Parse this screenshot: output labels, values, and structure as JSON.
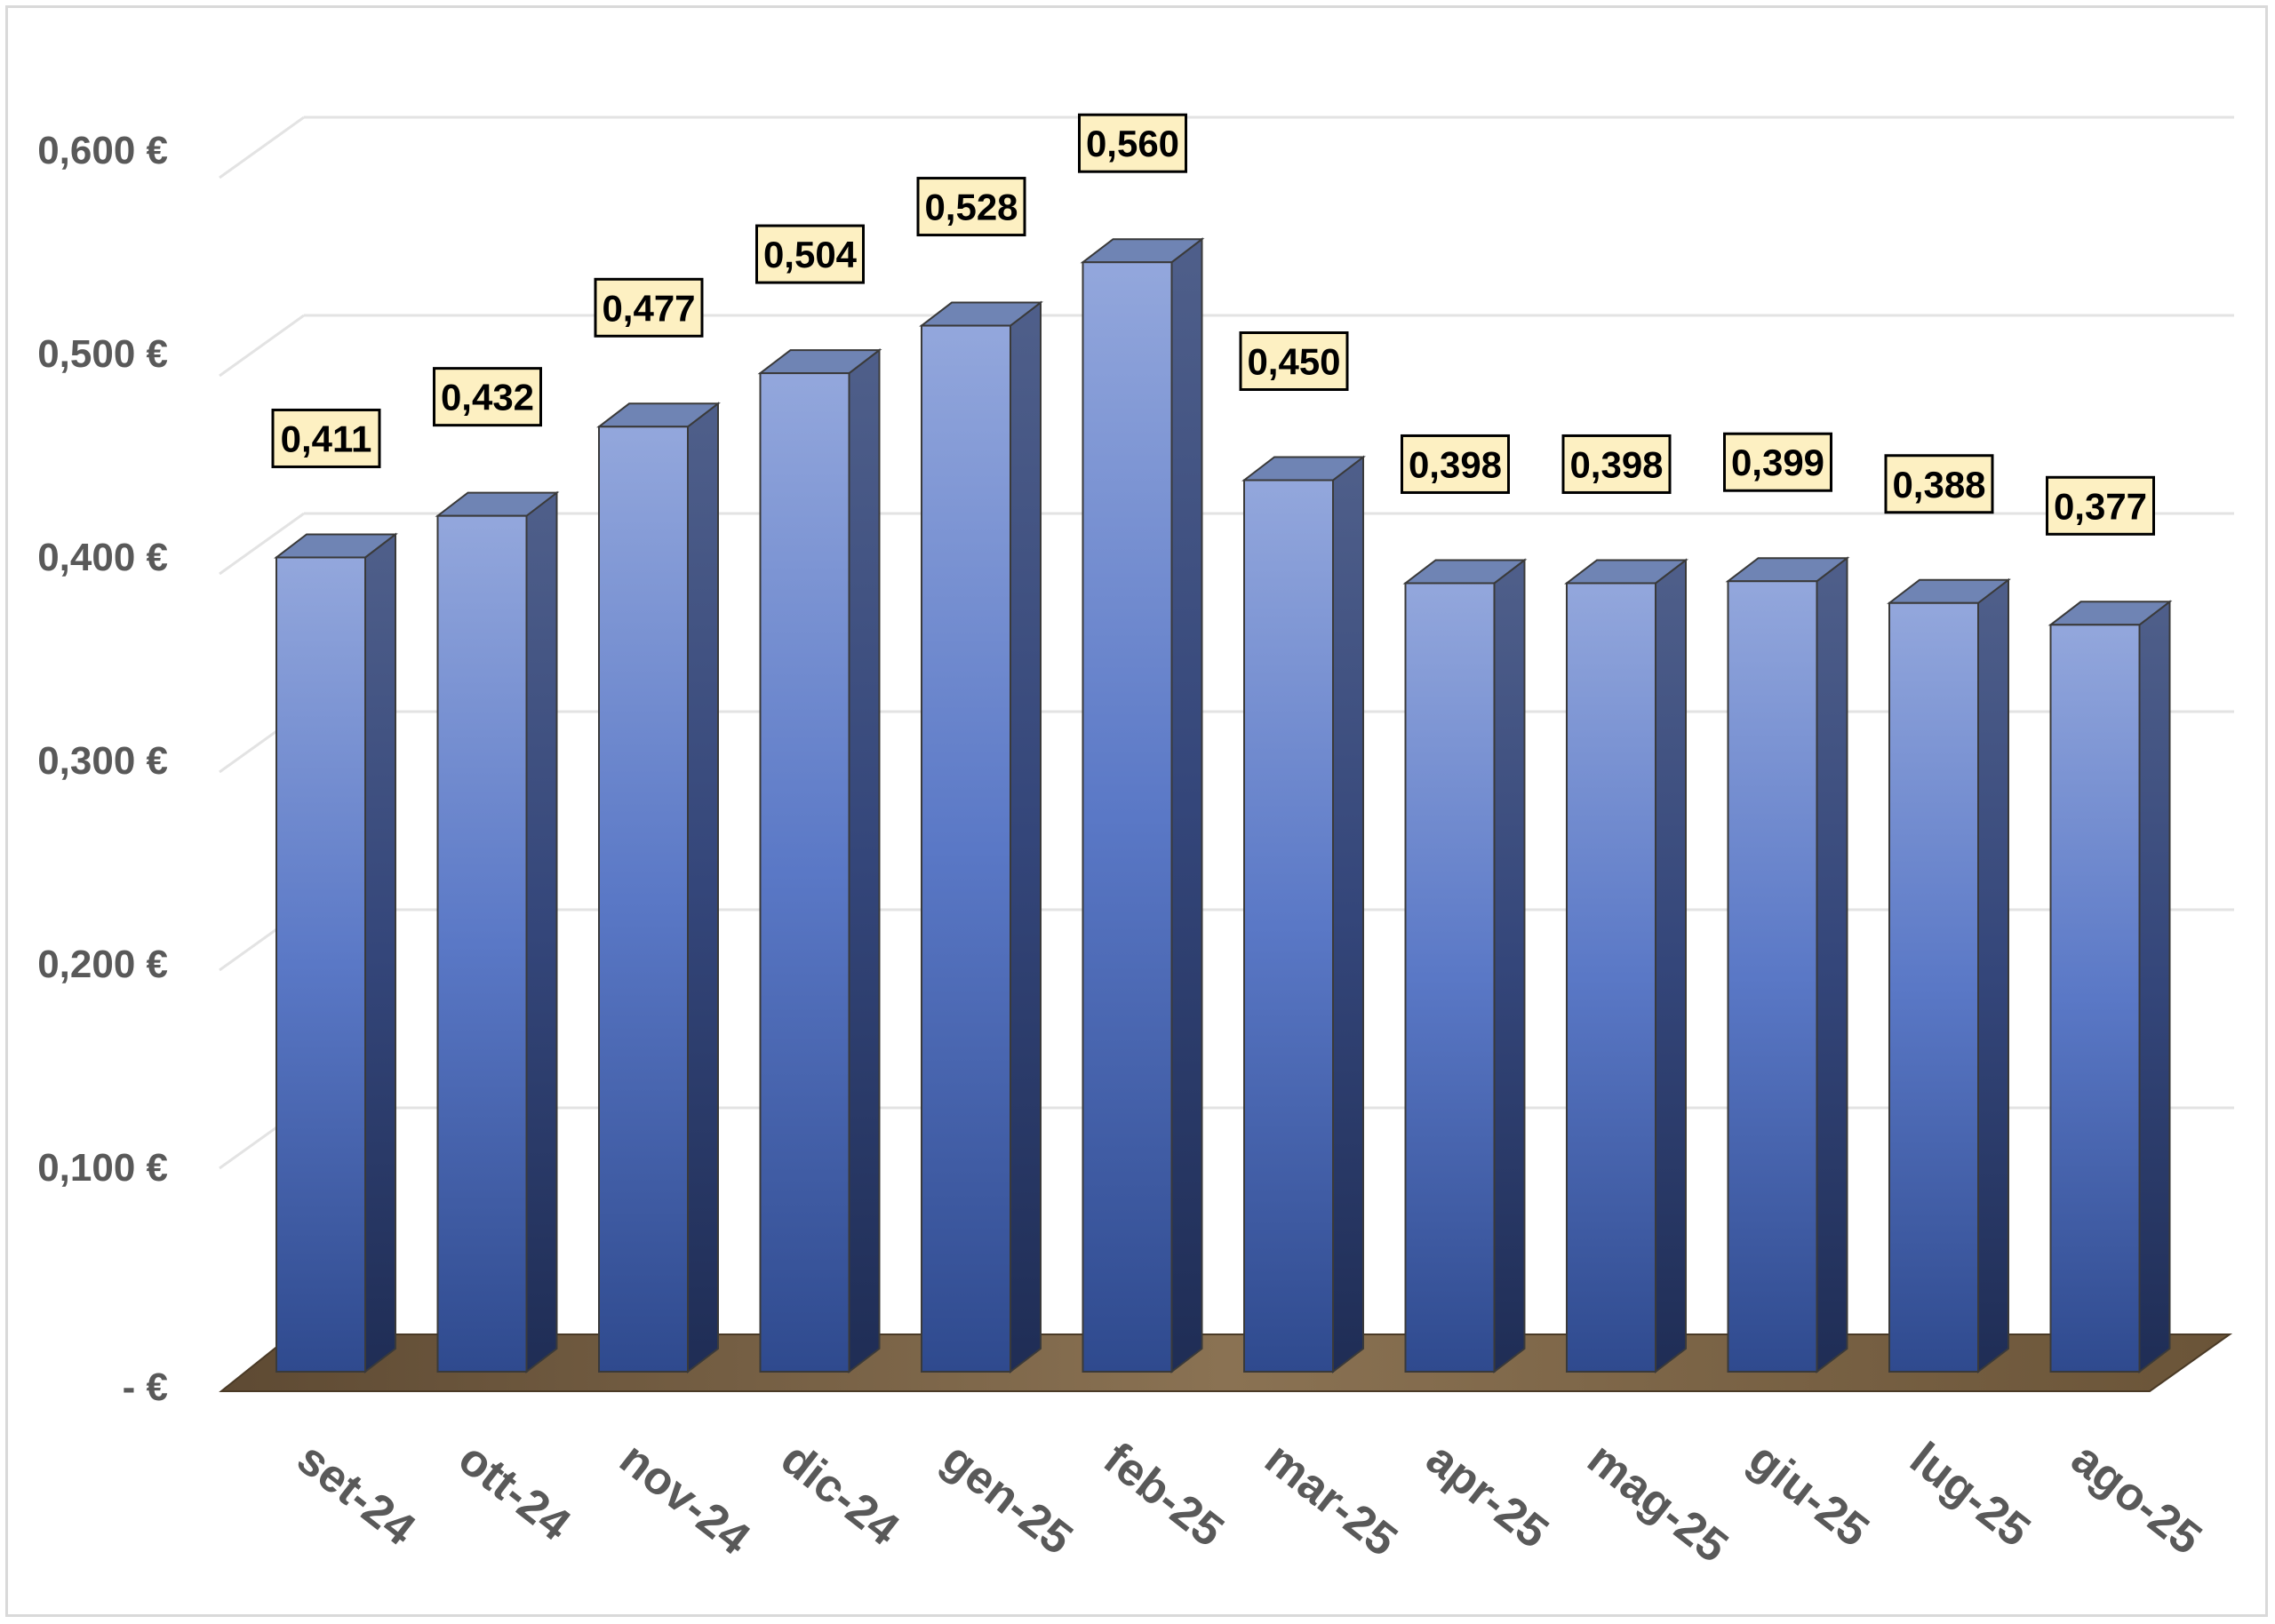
{
  "chart_data": {
    "type": "bar",
    "style": "3d-column",
    "categories": [
      "set-24",
      "ott-24",
      "nov-24",
      "dic-24",
      "gen-25",
      "feb-25",
      "mar-25",
      "apr-25",
      "mag-25",
      "giu-25",
      "lug-25",
      "ago-25"
    ],
    "values": [
      0.411,
      0.432,
      0.477,
      0.504,
      0.528,
      0.56,
      0.45,
      0.398,
      0.398,
      0.399,
      0.388,
      0.377
    ],
    "data_labels": [
      "0,411",
      "0,432",
      "0,477",
      "0,504",
      "0,528",
      "0,560",
      "0,450",
      "0,398",
      "0,398",
      "0,399",
      "0,388",
      "0,377"
    ],
    "y_ticks": [
      0,
      0.1,
      0.2,
      0.3,
      0.4,
      0.5,
      0.6
    ],
    "y_tick_labels": [
      "-  €",
      "0,100 €",
      "0,200 €",
      "0,300 €",
      "0,400 €",
      "0,500 €",
      "0,600 €"
    ],
    "ylim": [
      0,
      0.6
    ],
    "grid": true,
    "legend": "none",
    "colors": {
      "bar_light": "#93a7dc",
      "bar_mid": "#5a78c6",
      "bar_dark": "#2f4a8e",
      "bar_side": "#2a3c6e",
      "bar_top": "#6f84b4",
      "floor": "#7a6448",
      "label_fill": "#fdf0c2",
      "label_border": "#000000",
      "gridline": "#e3e3e3",
      "tick_text": "#595959"
    }
  }
}
